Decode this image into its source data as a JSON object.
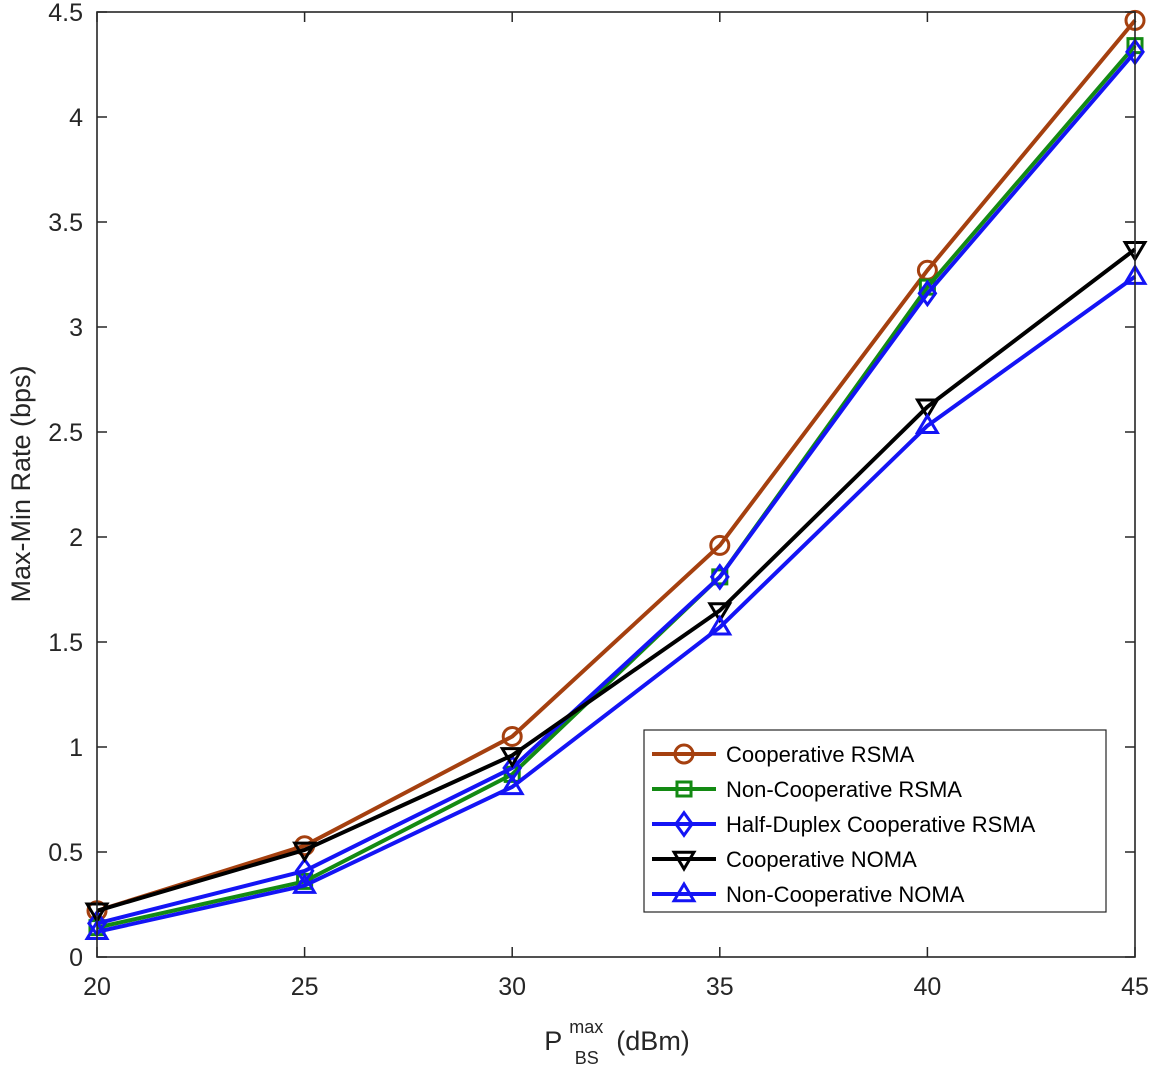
{
  "chart_data": {
    "type": "line",
    "title": "",
    "xlabel": {
      "main": "P",
      "superscript": "max",
      "subscript": "BS",
      "unit": "(dBm)"
    },
    "ylabel": "Max-Min Rate (bps)",
    "xlim": [
      20,
      45
    ],
    "ylim": [
      0,
      4.5
    ],
    "xticks": [
      20,
      25,
      30,
      35,
      40,
      45
    ],
    "yticks": [
      0,
      0.5,
      1,
      1.5,
      2,
      2.5,
      3,
      3.5,
      4,
      4.5
    ],
    "xtick_labels": [
      "20",
      "25",
      "30",
      "35",
      "40",
      "45"
    ],
    "ytick_labels": [
      "0",
      "0.5",
      "1",
      "1.5",
      "2",
      "2.5",
      "3",
      "3.5",
      "4",
      "4.5"
    ],
    "grid": false,
    "legend_position": "bottom-right",
    "x": [
      20,
      25,
      30,
      35,
      40,
      45
    ],
    "series": [
      {
        "name": "Cooperative RSMA",
        "color": "#A5400F",
        "marker": "circle",
        "values": [
          0.22,
          0.53,
          1.05,
          1.96,
          3.27,
          4.46
        ]
      },
      {
        "name": "Non-Cooperative RSMA",
        "color": "#138A13",
        "marker": "square",
        "values": [
          0.14,
          0.36,
          0.87,
          1.81,
          3.19,
          4.34
        ]
      },
      {
        "name": "Half-Duplex Cooperative RSMA",
        "color": "#1414F5",
        "marker": "diamond",
        "values": [
          0.16,
          0.41,
          0.9,
          1.81,
          3.16,
          4.31
        ]
      },
      {
        "name": "Cooperative NOMA",
        "color": "#000000",
        "marker": "triangle-down",
        "values": [
          0.22,
          0.51,
          0.96,
          1.65,
          2.62,
          3.37
        ]
      },
      {
        "name": "Non-Cooperative NOMA",
        "color": "#1414F5",
        "marker": "triangle-up",
        "values": [
          0.12,
          0.34,
          0.81,
          1.57,
          2.53,
          3.24
        ]
      }
    ]
  }
}
